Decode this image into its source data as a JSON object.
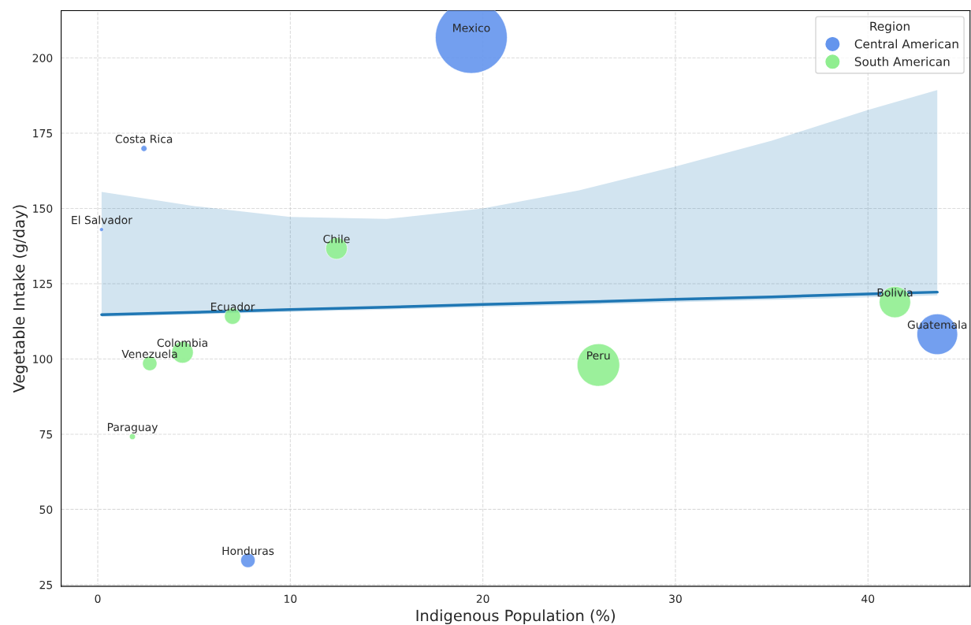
{
  "chart_data": {
    "type": "bubble",
    "xlabel": "Indigenous Population (%)",
    "ylabel": "Vegetable Intake (g/day)",
    "legend_title": "Region",
    "legend": "top right",
    "grid": true,
    "xlim": [
      -1.9,
      45.3
    ],
    "ylim": [
      24.5,
      215.7
    ],
    "xticks": [
      0,
      10,
      20,
      30,
      40
    ],
    "yticks": [
      25,
      50,
      75,
      100,
      125,
      150,
      175,
      200
    ],
    "series": [
      {
        "name": "Central American",
        "color": "#6495ed",
        "x": [
          19.4,
          2.4,
          0.2,
          7.8,
          43.6
        ],
        "values": [
          206.8,
          169.9,
          143.0,
          33.1,
          108.2
        ],
        "sizes": [
          1,
          0.007,
          0.003,
          0.04,
          0.32
        ]
      },
      {
        "name": "South American",
        "color": "#90ee90",
        "x": [
          12.4,
          7.0,
          4.4,
          2.7,
          1.8,
          26.0,
          41.4
        ],
        "values": [
          136.7,
          114.2,
          102.2,
          98.5,
          74.2,
          98.0,
          118.9
        ],
        "sizes": [
          0.09,
          0.05,
          0.09,
          0.04,
          0.007,
          0.35,
          0.19
        ]
      },
      {
        "type": "line",
        "color": "#1f77b4",
        "x": [
          0.2,
          5,
          10,
          15,
          20,
          25,
          30,
          35,
          40,
          43.6
        ],
        "values": [
          114.7,
          115.5,
          116.4,
          117.2,
          118.1,
          118.9,
          119.8,
          120.6,
          121.6,
          122.2
        ],
        "lower": [
          114.0,
          114.8,
          115.6,
          116.4,
          117.2,
          118.0,
          118.8,
          119.6,
          120.5,
          121.1
        ],
        "upper": [
          155.5,
          150.8,
          147.2,
          146.5,
          150.0,
          156.0,
          163.9,
          172.5,
          182.7,
          189.3
        ]
      }
    ],
    "annotations": [
      {
        "text": "Mexico",
        "x": 19.4,
        "y": 206.8
      },
      {
        "text": "Costa Rica",
        "x": 2.4,
        "y": 169.9
      },
      {
        "text": "El Salvador",
        "x": 0.2,
        "y": 143.0
      },
      {
        "text": "Honduras",
        "x": 7.8,
        "y": 33.1
      },
      {
        "text": "Guatemala",
        "x": 43.6,
        "y": 108.2
      },
      {
        "text": "Chile",
        "x": 12.4,
        "y": 136.7
      },
      {
        "text": "Ecuador",
        "x": 7.0,
        "y": 114.2
      },
      {
        "text": "Colombia",
        "x": 4.4,
        "y": 102.2
      },
      {
        "text": "Venezuela",
        "x": 2.7,
        "y": 98.5
      },
      {
        "text": "Paraguay",
        "x": 1.8,
        "y": 74.2
      },
      {
        "text": "Peru",
        "x": 26.0,
        "y": 98.0
      },
      {
        "text": "Bolivia",
        "x": 41.4,
        "y": 118.9
      }
    ]
  }
}
